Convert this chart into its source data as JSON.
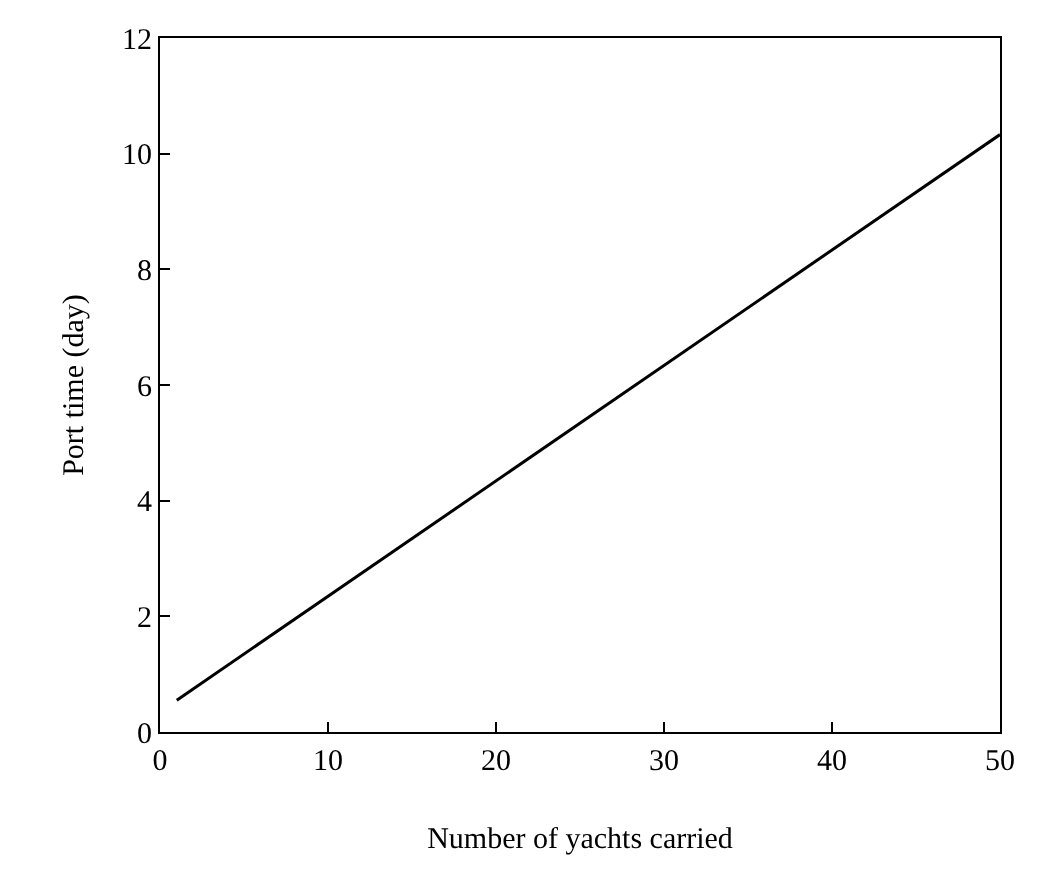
{
  "chart_data": {
    "type": "line",
    "xlabel": "Number of yachts carried",
    "ylabel": "Port time (day)",
    "x": [
      1,
      50
    ],
    "values": [
      0.55,
      10.33
    ],
    "color": "#000000",
    "xlim": [
      0,
      50
    ],
    "xticks": [
      0,
      10,
      20,
      30,
      40,
      50
    ],
    "ylim": [
      0,
      12
    ],
    "yticks": [
      0,
      2,
      4,
      6,
      8,
      10,
      12
    ],
    "line_style": "solid"
  }
}
